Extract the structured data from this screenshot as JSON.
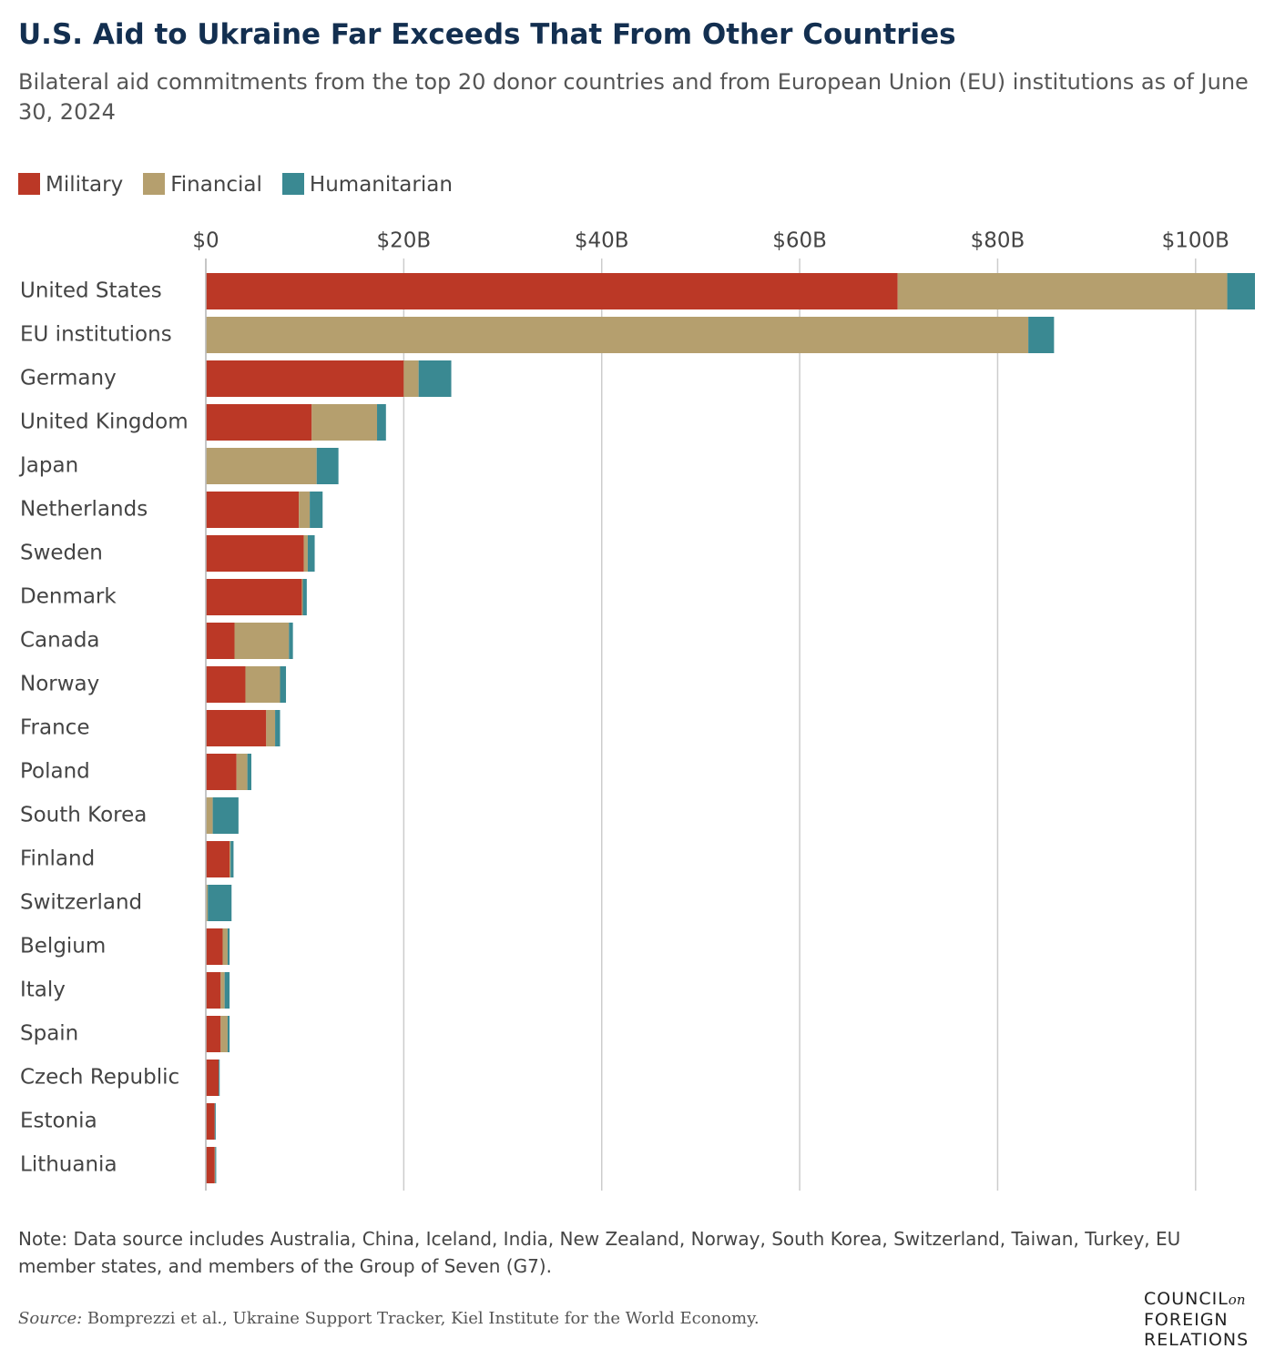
{
  "chart_data": {
    "type": "stacked-bar-horizontal",
    "title": "U.S. Aid to Ukraine Far Exceeds That From Other Countries",
    "subtitle": "Bilateral aid commitments from the top 20 donor countries and from European Union (EU) institutions as of June 30, 2024",
    "categories": [
      "United States",
      "EU institutions",
      "Germany",
      "United Kingdom",
      "Japan",
      "Netherlands",
      "Sweden",
      "Denmark",
      "Canada",
      "Norway",
      "France",
      "Poland",
      "South Korea",
      "Finland",
      "Switzerland",
      "Belgium",
      "Italy",
      "Spain",
      "Czech Republic",
      "Estonia",
      "Lithuania"
    ],
    "series": [
      {
        "name": "Military",
        "color": "#bb3826",
        "values": [
          69.9,
          0,
          20.0,
          10.7,
          0,
          9.4,
          9.9,
          9.7,
          2.9,
          4.0,
          6.1,
          3.1,
          0,
          2.4,
          0,
          1.7,
          1.5,
          1.5,
          1.3,
          0.9,
          0.9
        ]
      },
      {
        "name": "Financial",
        "color": "#b59f6e",
        "values": [
          33.3,
          83.1,
          1.5,
          6.6,
          11.2,
          1.1,
          0.4,
          0.1,
          5.5,
          3.5,
          0.9,
          1.1,
          0.7,
          0.1,
          0.2,
          0.5,
          0.4,
          0.7,
          0,
          0,
          0.05
        ]
      },
      {
        "name": "Humanitarian",
        "color": "#3a8992",
        "values": [
          2.8,
          2.6,
          3.3,
          0.9,
          2.2,
          1.3,
          0.7,
          0.4,
          0.4,
          0.6,
          0.5,
          0.4,
          2.6,
          0.3,
          2.4,
          0.2,
          0.5,
          0.2,
          0.1,
          0.1,
          0.1
        ]
      }
    ],
    "xlim": [
      0,
      106
    ],
    "xticks": [
      {
        "value": 0,
        "label": "$0"
      },
      {
        "value": 20,
        "label": "$20B"
      },
      {
        "value": 40,
        "label": "$40B"
      },
      {
        "value": 60,
        "label": "$60B"
      },
      {
        "value": 80,
        "label": "$80B"
      },
      {
        "value": 100,
        "label": "$100B"
      }
    ],
    "grid": true,
    "legend": "top-left",
    "note": "Note: Data source includes Australia, China, Iceland, India, New Zealand, Norway, South Korea, Switzerland, Taiwan, Turkey, EU member states, and members of the Group of Seven (G7).",
    "source": {
      "label": "Source:",
      "text": "Bomprezzi et al., Ukraine Support Tracker, Kiel Institute for the World Economy."
    },
    "logo": [
      "COUNCIL",
      "on",
      "FOREIGN",
      "RELATIONS"
    ]
  }
}
